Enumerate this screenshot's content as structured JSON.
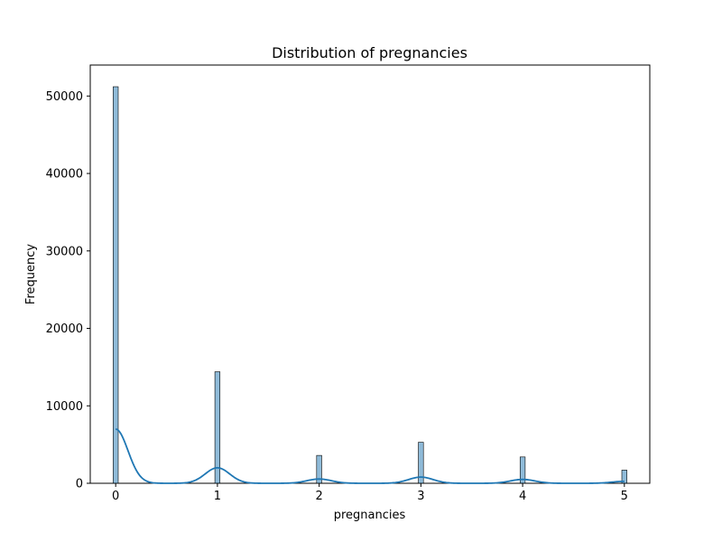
{
  "chart_data": {
    "type": "bar",
    "title": "Distribution of pregnancies",
    "xlabel": "pregnancies",
    "ylabel": "Frequency",
    "xlim": [
      -0.25,
      5.25
    ],
    "ylim": [
      0,
      54000
    ],
    "x_ticks": [
      "0",
      "1",
      "2",
      "3",
      "4",
      "5"
    ],
    "y_ticks": [
      "0",
      "10000",
      "20000",
      "30000",
      "40000",
      "50000"
    ],
    "grid": false,
    "legend": "none",
    "bin_width": 0.05,
    "bar_color": "#1f77b4",
    "series": [
      {
        "values": [
          {
            "x": 0,
            "y": 51200
          },
          {
            "x": 1,
            "y": 14400
          },
          {
            "x": 2,
            "y": 3600
          },
          {
            "x": 3,
            "y": 5300
          },
          {
            "x": 4,
            "y": 3400
          },
          {
            "x": 5,
            "y": 1700
          }
        ]
      }
    ],
    "kde": {
      "color": "#1f77b4",
      "points": [
        {
          "x": 0,
          "y": 7000
        },
        {
          "x": 1,
          "y": 2000
        },
        {
          "x": 2,
          "y": 550
        },
        {
          "x": 3,
          "y": 800
        },
        {
          "x": 4,
          "y": 500
        },
        {
          "x": 5,
          "y": 250
        }
      ]
    }
  }
}
